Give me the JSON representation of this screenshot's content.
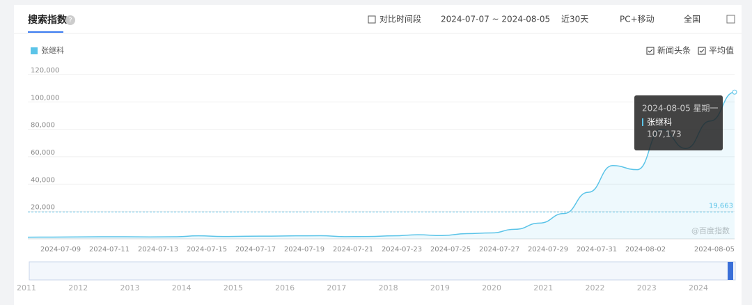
{
  "ui": {
    "title": "搜索指数",
    "compare": "对比时间段",
    "range": "2024-07-07 ~ 2024-08-05",
    "period": "近30天",
    "device": "PC+移动",
    "region": "全国",
    "news": "新闻头条",
    "avg": "平均值",
    "watermark": "@百度指数"
  },
  "chart_data": {
    "type": "line",
    "categories": [
      null,
      null,
      "2024-07-09",
      null,
      "2024-07-11",
      null,
      "2024-07-13",
      null,
      "2024-07-15",
      null,
      "2024-07-17",
      null,
      "2024-07-19",
      null,
      "2024-07-21",
      null,
      "2024-07-23",
      null,
      "2024-07-25",
      null,
      "2024-07-27",
      null,
      "2024-07-29",
      null,
      "2024-07-31",
      null,
      "2024-08-02",
      null,
      null,
      "2024-08-05"
    ],
    "series": [
      {
        "name": "张继科",
        "color": "#5bc4e8",
        "values": [
          1200,
          1300,
          1400,
          1500,
          1500,
          1400,
          1500,
          2200,
          1700,
          1900,
          2000,
          2200,
          2300,
          1600,
          1700,
          2200,
          3000,
          2400,
          3800,
          4300,
          7000,
          11500,
          18500,
          34000,
          53500,
          50500,
          80000,
          66000,
          86000,
          107173
        ]
      }
    ],
    "ylim": [
      0,
      120000
    ],
    "yticks": [
      {
        "value": 20000,
        "label": "20,000"
      },
      {
        "value": 40000,
        "label": "40,000"
      },
      {
        "value": 60000,
        "label": "60,000"
      },
      {
        "value": 80000,
        "label": "80,000"
      },
      {
        "value": 100000,
        "label": "100,000"
      },
      {
        "value": 120000,
        "label": "120,000"
      }
    ],
    "grid": true,
    "average": {
      "value": 19663,
      "label": "19,663"
    },
    "tooltip": {
      "date": "2024-08-05 星期一",
      "series": "张继科",
      "value": 107173,
      "label": "107,173"
    }
  },
  "timeline": {
    "years": [
      2011,
      2012,
      2013,
      2014,
      2015,
      2016,
      2017,
      2018,
      2019,
      2020,
      2021,
      2022,
      2023,
      2024
    ]
  }
}
